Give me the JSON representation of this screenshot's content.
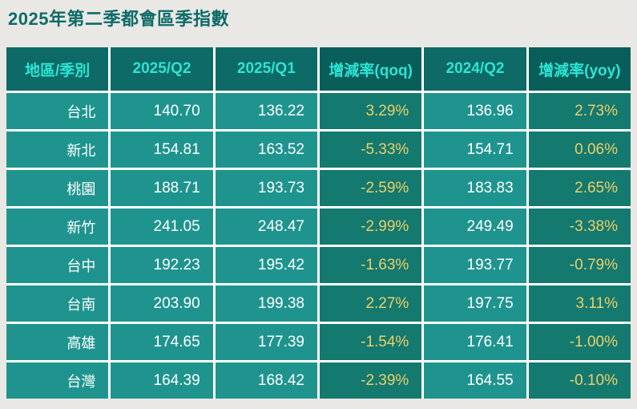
{
  "title": "2025年第二季都會區季指數",
  "chart_data": {
    "type": "table",
    "title": "2025年第二季都會區季指數",
    "columns": [
      "地區/季別",
      "2025/Q2",
      "2025/Q1",
      "增減率(qoq)",
      "2024/Q2",
      "增減率(yoy)"
    ],
    "rows": [
      {
        "region": "台北",
        "q2_2025": "140.70",
        "q1_2025": "136.22",
        "qoq": "3.29%",
        "q2_2024": "136.96",
        "yoy": "2.73%"
      },
      {
        "region": "新北",
        "q2_2025": "154.81",
        "q1_2025": "163.52",
        "qoq": "-5.33%",
        "q2_2024": "154.71",
        "yoy": "0.06%"
      },
      {
        "region": "桃園",
        "q2_2025": "188.71",
        "q1_2025": "193.73",
        "qoq": "-2.59%",
        "q2_2024": "183.83",
        "yoy": "2.65%"
      },
      {
        "region": "新竹",
        "q2_2025": "241.05",
        "q1_2025": "248.47",
        "qoq": "-2.99%",
        "q2_2024": "249.49",
        "yoy": "-3.38%"
      },
      {
        "region": "台中",
        "q2_2025": "192.23",
        "q1_2025": "195.42",
        "qoq": "-1.63%",
        "q2_2024": "193.77",
        "yoy": "-0.79%"
      },
      {
        "region": "台南",
        "q2_2025": "203.90",
        "q1_2025": "199.38",
        "qoq": "2.27%",
        "q2_2024": "197.75",
        "yoy": "3.11%"
      },
      {
        "region": "高雄",
        "q2_2025": "174.65",
        "q1_2025": "177.39",
        "qoq": "-1.54%",
        "q2_2024": "176.41",
        "yoy": "-1.00%"
      },
      {
        "region": "台灣",
        "q2_2025": "164.39",
        "q1_2025": "168.42",
        "qoq": "-2.39%",
        "q2_2024": "164.55",
        "yoy": "-0.10%"
      }
    ]
  },
  "colors": {
    "page_background": "#e9e8e5",
    "title_text": "#0d6b67",
    "header_background": "#0d6a66",
    "header_background_pct": "#095e5a",
    "header_text": "#2de4d3",
    "cell_background": "#1f948f",
    "cell_background_pct": "#14796f",
    "cell_text": "#ffffff",
    "pct_text": "#ecd068",
    "gridline": "#ffffff"
  }
}
